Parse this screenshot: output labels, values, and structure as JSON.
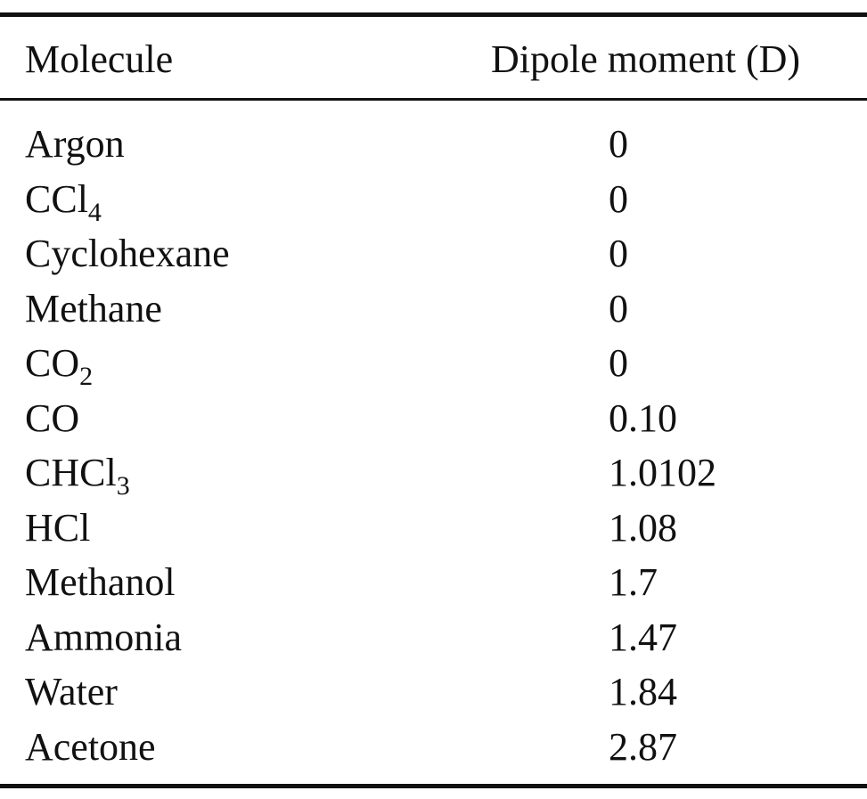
{
  "table": {
    "headers": {
      "molecule": "Molecule",
      "dipole": "Dipole moment (D)"
    },
    "rows": [
      {
        "name": "Argon",
        "sub": "",
        "value": "0"
      },
      {
        "name": "CCl",
        "sub": "4",
        "value": "0"
      },
      {
        "name": "Cyclohexane",
        "sub": "",
        "value": "0"
      },
      {
        "name": "Methane",
        "sub": "",
        "value": "0"
      },
      {
        "name": "CO",
        "sub": "2",
        "value": "0"
      },
      {
        "name": "CO",
        "sub": "",
        "value": "0.10"
      },
      {
        "name": "CHCl",
        "sub": "3",
        "value": "1.0102"
      },
      {
        "name": "HCl",
        "sub": "",
        "value": "1.08"
      },
      {
        "name": "Methanol",
        "sub": "",
        "value": "1.7"
      },
      {
        "name": "Ammonia",
        "sub": "",
        "value": "1.47"
      },
      {
        "name": "Water",
        "sub": "",
        "value": "1.84"
      },
      {
        "name": "Acetone",
        "sub": "",
        "value": "2.87"
      }
    ]
  },
  "colors": {
    "text": "#111111",
    "rule": "#111111",
    "background": "#ffffff"
  }
}
